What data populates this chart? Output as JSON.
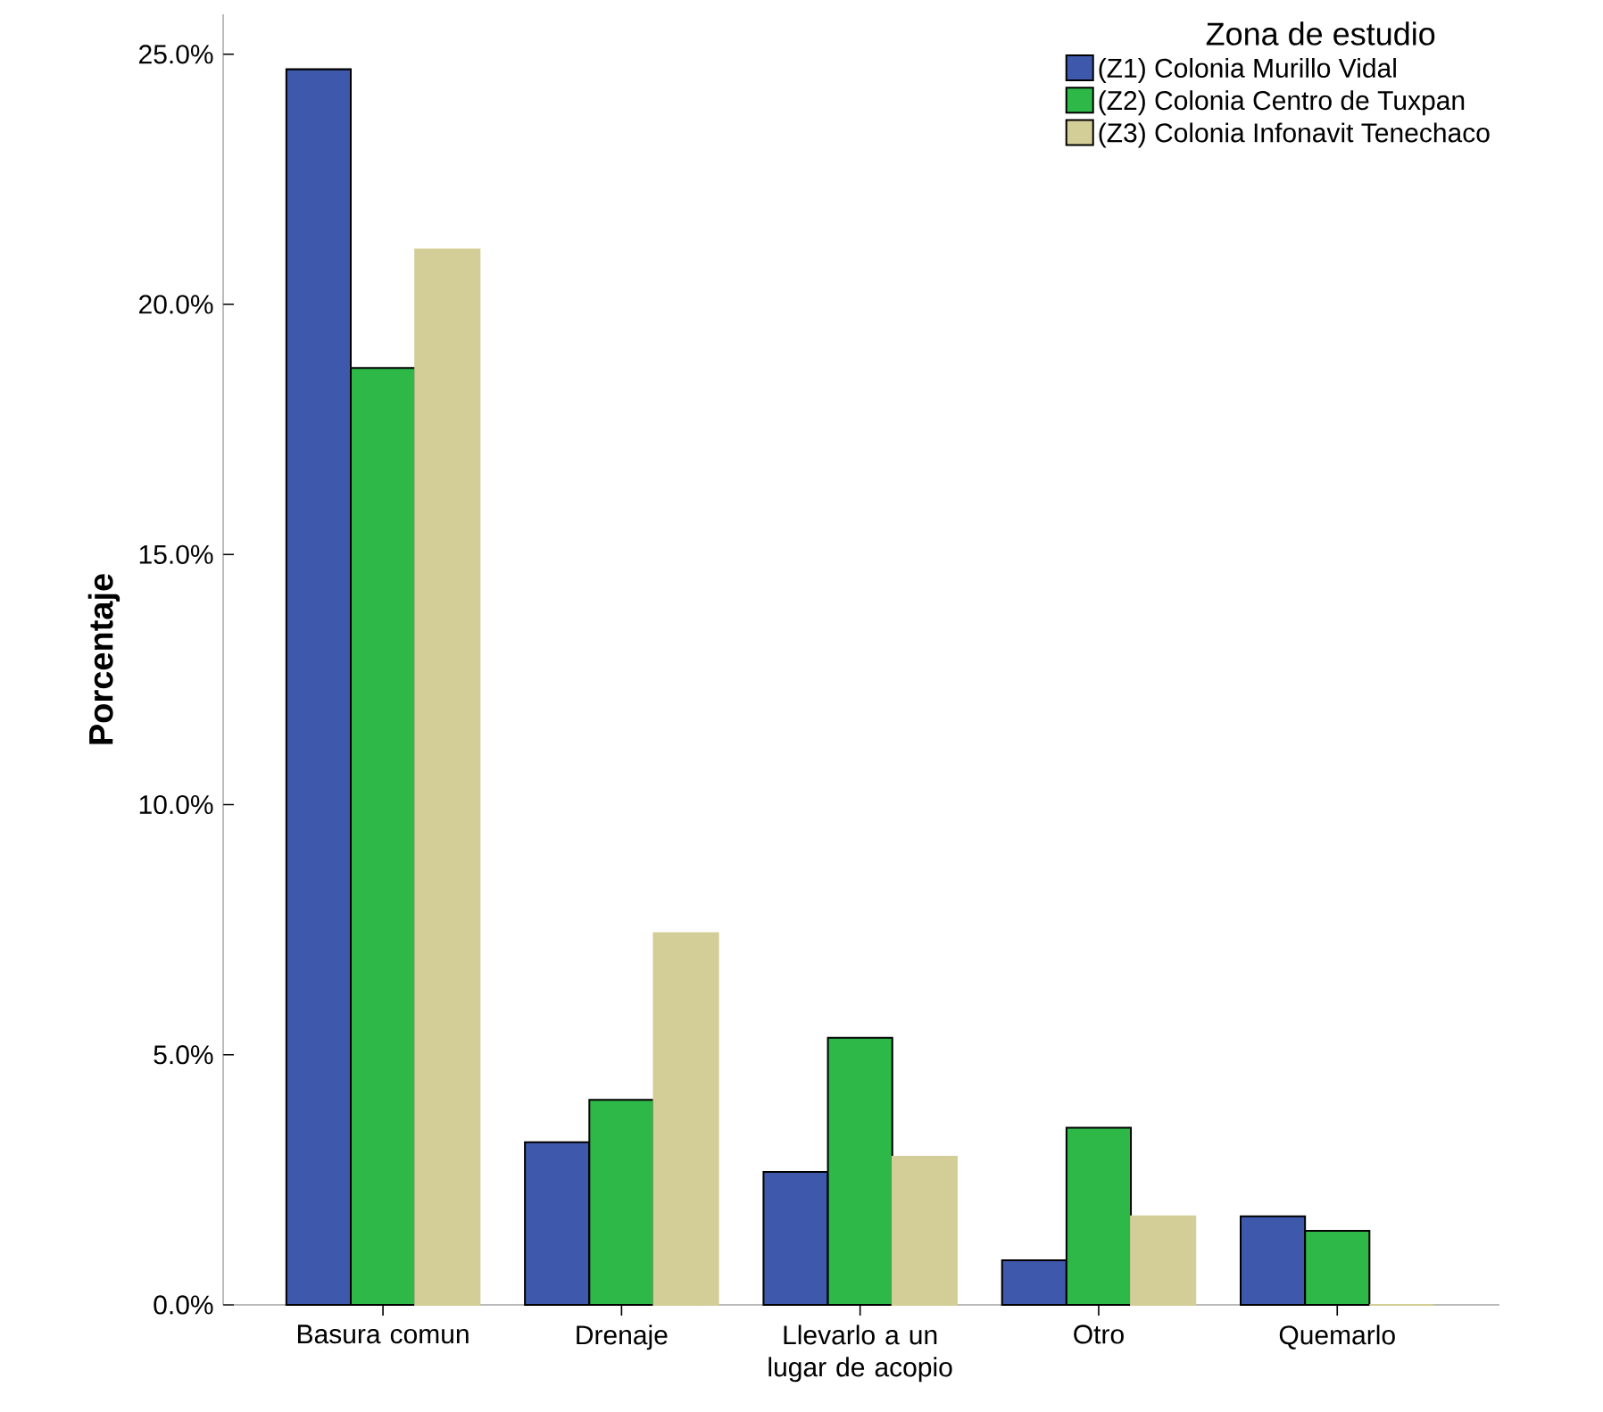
{
  "chart_data": {
    "type": "bar",
    "ylabel": "Porcentaje",
    "legend_title": "Zona de estudio",
    "legend": "top right",
    "categories": [
      "Basura comun",
      "Drenaje",
      "Llevarlo a un lugar de acopio",
      "Otro",
      "Quemarlo"
    ],
    "series": [
      {
        "name": "(Z1) Colonia Murillo Vidal",
        "color": "#3e58ac",
        "values": [
          24.7,
          3.25,
          2.66,
          0.89,
          1.77
        ]
      },
      {
        "name": "(Z2) Colonia Centro de Tuxpan",
        "color": "#2eb848",
        "values": [
          18.73,
          4.1,
          5.34,
          3.54,
          1.48
        ]
      },
      {
        "name": "(Z3) Colonia Infonavit Tenechaco",
        "color": "#d3ce97",
        "values": [
          21.1,
          7.43,
          2.96,
          1.77,
          0
        ]
      }
    ],
    "ylim": [
      0,
      25.8
    ],
    "yticks": [
      {
        "value": 0,
        "label": "0.0%"
      },
      {
        "value": 5,
        "label": "5.0%"
      },
      {
        "value": 10,
        "label": "10.0%"
      },
      {
        "value": 15,
        "label": "15.0%"
      },
      {
        "value": 20,
        "label": "20.0%"
      },
      {
        "value": 25,
        "label": "25.0%"
      }
    ]
  }
}
